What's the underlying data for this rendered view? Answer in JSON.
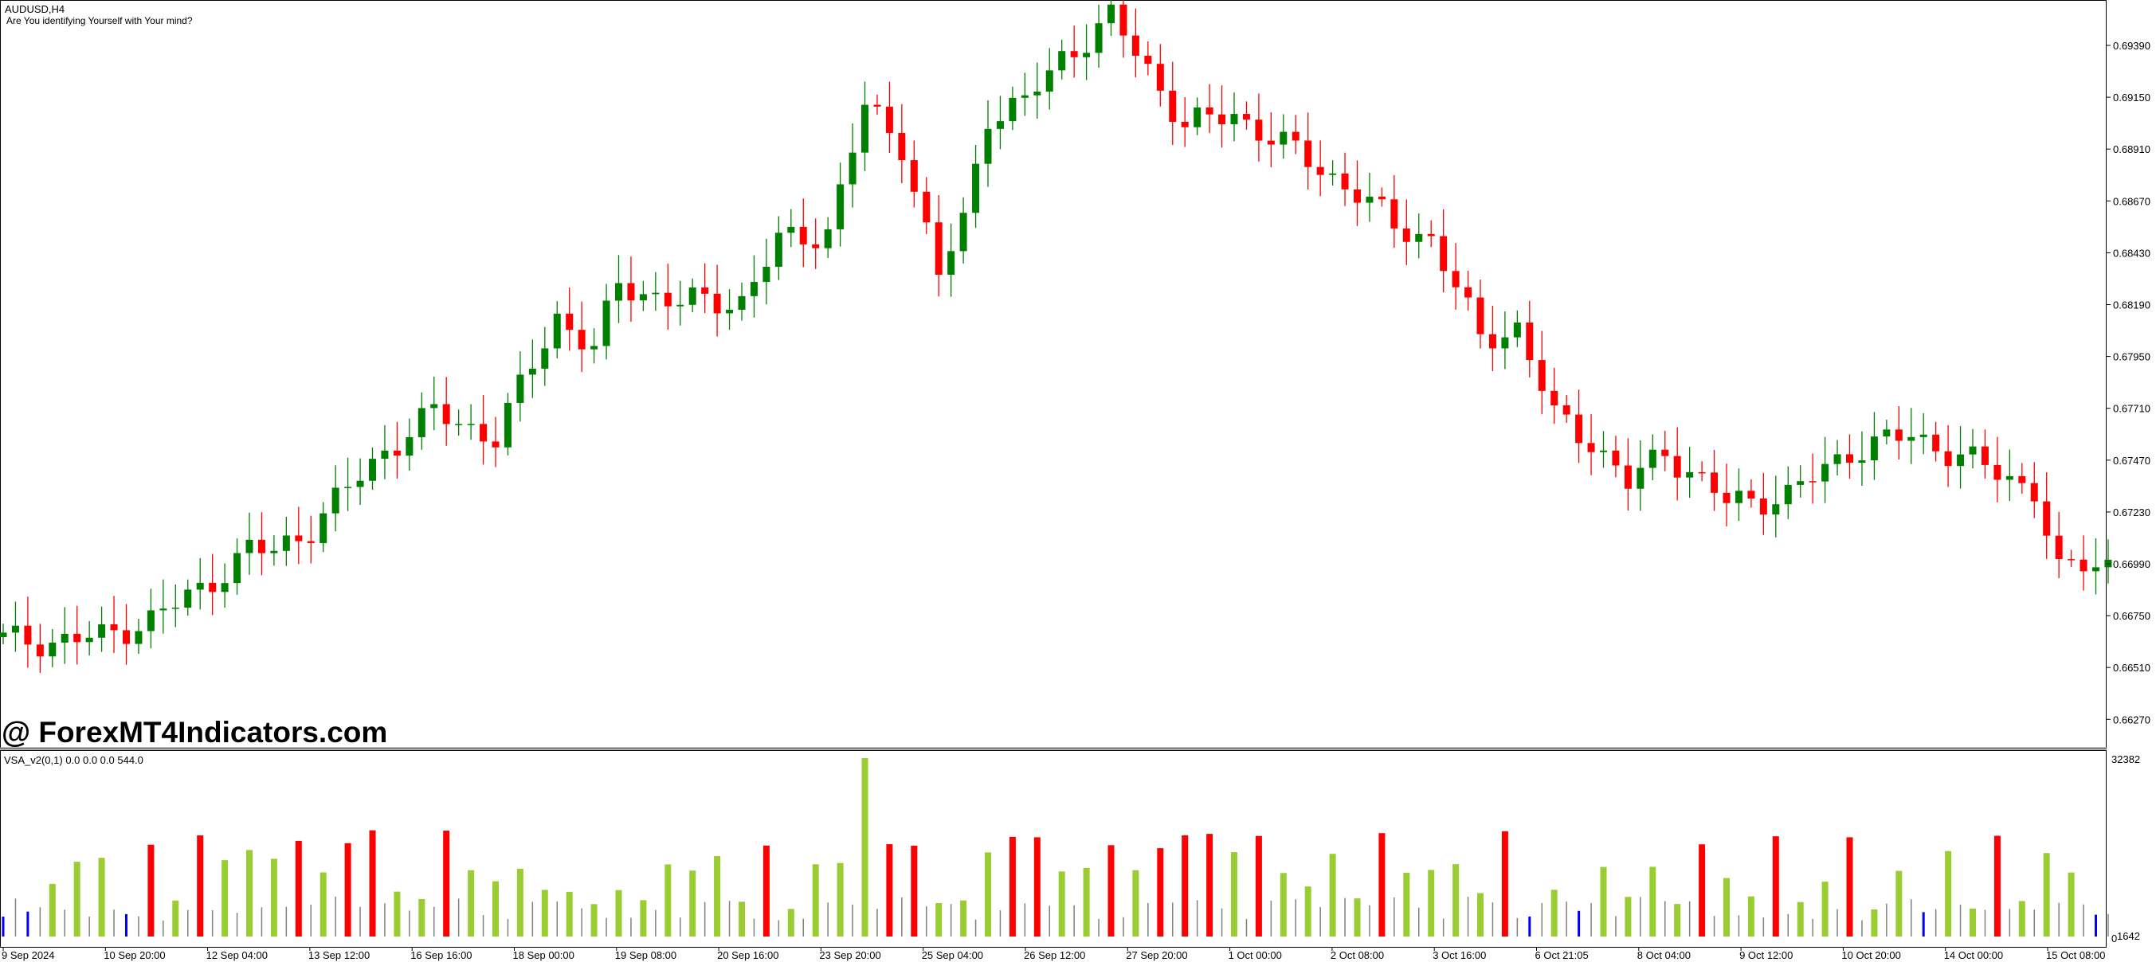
{
  "window": {
    "symbol_label": "AUDUSD,H4",
    "indicator_comment": "Are You identifying Yourself with Your mind?",
    "watermark": "@ ForexMT4Indicators.com"
  },
  "colors": {
    "background": "#ffffff",
    "bull": "#008000",
    "bear": "#ff0000",
    "grid_text": "#000000",
    "vsa_green": "#9acd32",
    "vsa_red": "#ff0000",
    "vsa_blue": "#0000ff",
    "vsa_gray": "#808080"
  },
  "price_axis": {
    "labels": [
      "0.69390",
      "0.69150",
      "0.68910",
      "0.68670",
      "0.68430",
      "0.68190",
      "0.67950",
      "0.67710",
      "0.67470",
      "0.67230",
      "0.66990",
      "0.66750",
      "0.66510",
      "0.66270"
    ]
  },
  "time_axis": {
    "labels": [
      "9 Sep 2024",
      "10 Sep 20:00",
      "12 Sep 04:00",
      "13 Sep 12:00",
      "16 Sep 16:00",
      "18 Sep 00:00",
      "19 Sep 08:00",
      "20 Sep 16:00",
      "23 Sep 20:00",
      "25 Sep 04:00",
      "26 Sep 12:00",
      "27 Sep 20:00",
      "1 Oct 00:00",
      "2 Oct 08:00",
      "3 Oct 16:00",
      "6 Oct 21:05",
      "8 Oct 04:00",
      "9 Oct 12:00",
      "10 Oct 20:00",
      "14 Oct 00:00",
      "15 Oct 08:00"
    ]
  },
  "indicator": {
    "label": "VSA_v2(0,1) 0.0 0.0 0.0 544.0",
    "max_label": "32382",
    "min_label": "0",
    "current_label": "1642"
  },
  "chart_data": {
    "type": "candlestick",
    "symbol": "AUDUSD",
    "timeframe": "H4",
    "ylim": [
      0.6613,
      0.6946
    ],
    "waypoints_index": [
      0,
      4,
      8,
      12,
      16,
      20,
      22,
      25,
      28,
      31,
      35,
      40,
      45,
      48,
      50,
      55,
      60,
      63,
      67,
      70,
      73,
      76,
      78,
      80,
      83,
      86,
      90,
      93,
      96,
      100,
      105,
      110,
      113,
      116,
      120,
      123,
      126,
      129,
      132,
      135,
      140,
      145,
      150,
      155,
      160,
      165,
      167,
      169
    ],
    "waypoints_close": [
      0.6661,
      0.666,
      0.6662,
      0.667,
      0.6683,
      0.6701,
      0.67,
      0.6711,
      0.6728,
      0.6745,
      0.6762,
      0.6751,
      0.6805,
      0.679,
      0.6819,
      0.6811,
      0.6812,
      0.6838,
      0.6843,
      0.6898,
      0.6882,
      0.6823,
      0.6847,
      0.6895,
      0.69,
      0.692,
      0.6938,
      0.6915,
      0.689,
      0.6895,
      0.6878,
      0.686,
      0.6845,
      0.684,
      0.6795,
      0.68,
      0.676,
      0.675,
      0.673,
      0.6745,
      0.6722,
      0.6725,
      0.6745,
      0.6752,
      0.674,
      0.6728,
      0.669,
      0.6695
    ],
    "vsa_volume_max": 32382
  }
}
